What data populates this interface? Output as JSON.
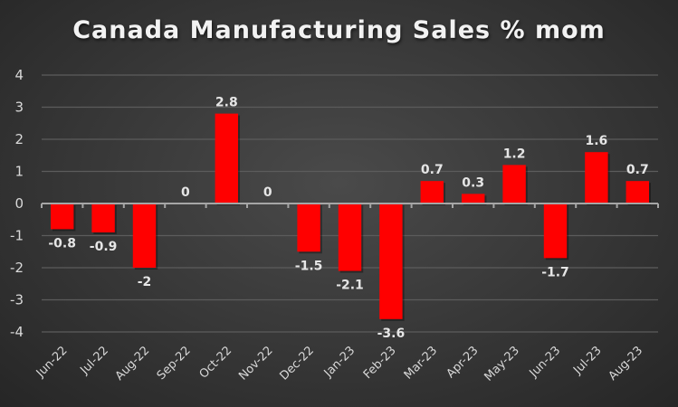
{
  "chart_data": {
    "type": "bar",
    "title": "Canada Manufacturing Sales % mom",
    "xlabel": "",
    "ylabel": "",
    "categories": [
      "Jun-22",
      "Jul-22",
      "Aug-22",
      "Sep-22",
      "Oct-22",
      "Nov-22",
      "Dec-22",
      "Jan-23",
      "Feb-23",
      "Mar-23",
      "Apr-23",
      "May-23",
      "Jun-23",
      "Jul-23",
      "Aug-23"
    ],
    "values": [
      -0.8,
      -0.9,
      -2,
      0,
      2.8,
      0,
      -1.5,
      -2.1,
      -3.6,
      0.7,
      0.3,
      1.2,
      -1.7,
      1.6,
      0.7
    ],
    "data_labels": [
      "-0.8",
      "-0.9",
      "-2",
      "0",
      "2.8",
      "0",
      "-1.5",
      "-2.1",
      "-3.6",
      "0.7",
      "0.3",
      "1.2",
      "-1.7",
      "1.6",
      "0.7"
    ],
    "ylim": [
      -4,
      4
    ],
    "yticks": [
      4,
      3,
      2,
      1,
      0,
      -1,
      -2,
      -3,
      -4
    ],
    "grid": true,
    "legend": "none",
    "bar_color": "#ff0000"
  }
}
